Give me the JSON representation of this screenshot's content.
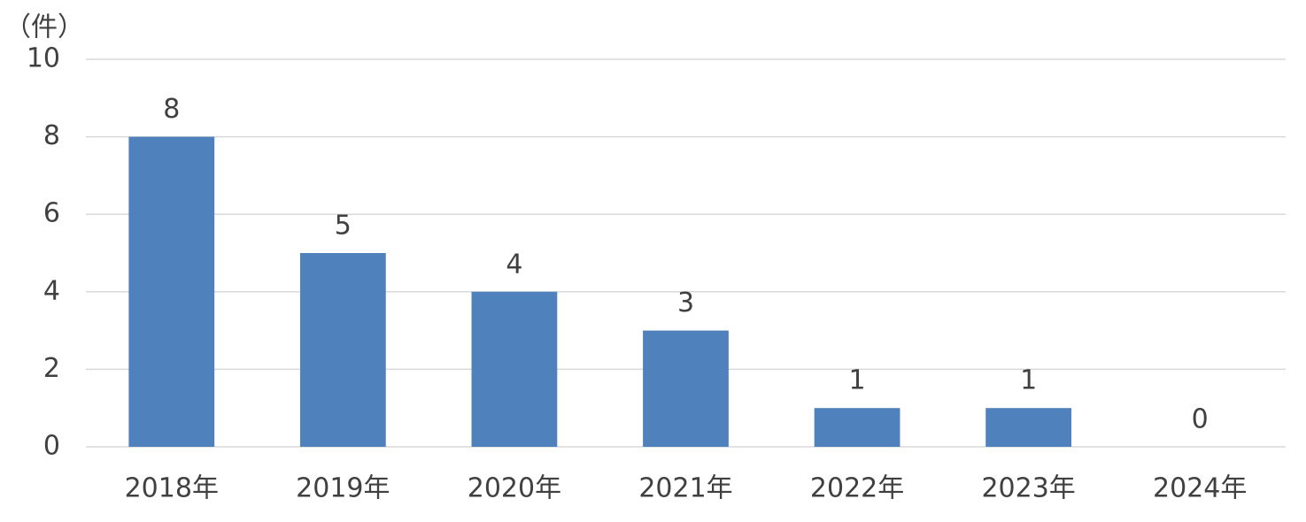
{
  "chart_data": {
    "type": "bar",
    "y_label": "（件）",
    "categories": [
      "2018年",
      "2019年",
      "2020年",
      "2021年",
      "2022年",
      "2023年",
      "2024年"
    ],
    "values": [
      8,
      5,
      4,
      3,
      1,
      1,
      0
    ],
    "color": "#4f81bd",
    "ylim": [
      0,
      10
    ],
    "yticks": [
      0,
      2,
      4,
      6,
      8,
      10
    ],
    "grid": true
  }
}
